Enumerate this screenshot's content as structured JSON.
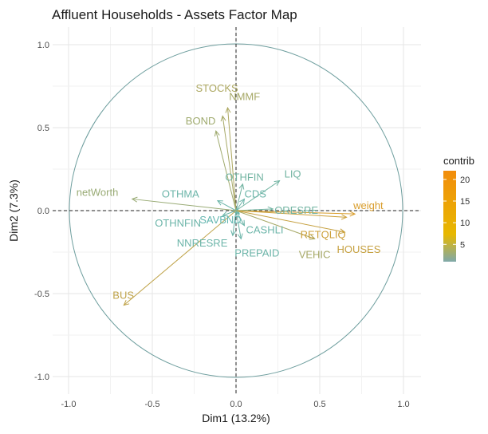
{
  "chart_data": {
    "type": "scatter",
    "subtype": "pca-correlation-circle",
    "title": "Affluent Households - Assets Factor Map",
    "xlabel": "Dim1 (13.2%)",
    "ylabel": "Dim2 (7.3%)",
    "xlim": [
      -1.0,
      1.0
    ],
    "ylim": [
      -1.0,
      1.0
    ],
    "xticks": [
      "-1.0",
      "-0.5",
      "0.0",
      "0.5",
      "1.0"
    ],
    "yticks": [
      "-1.0",
      "-0.5",
      "0.0",
      "0.5",
      "1.0"
    ],
    "grid": true,
    "legend_position": "right",
    "legend": {
      "title": "contrib",
      "ticks": [
        "5",
        "10",
        "15",
        "20"
      ],
      "tick_values": [
        5,
        10,
        15,
        20
      ],
      "range": [
        1,
        22
      ],
      "colors": [
        "#7FA9A9",
        "#E7B800",
        "#F28D0C"
      ]
    },
    "colors": {
      "low": "#5FB8B8",
      "high": "#E69A1C"
    },
    "variables": [
      {
        "name": "STOCKS",
        "x": -0.05,
        "y": 0.62,
        "contrib": 13
      },
      {
        "name": "NMMF",
        "x": -0.08,
        "y": 0.57,
        "contrib": 12
      },
      {
        "name": "BOND",
        "x": -0.12,
        "y": 0.48,
        "contrib": 11
      },
      {
        "name": "OTHFIN",
        "x": 0.04,
        "y": 0.16,
        "contrib": 4
      },
      {
        "name": "LIQ",
        "x": 0.26,
        "y": 0.18,
        "contrib": 4
      },
      {
        "name": "OTHMA",
        "x": -0.11,
        "y": 0.06,
        "contrib": 3
      },
      {
        "name": "CDS",
        "x": 0.05,
        "y": 0.07,
        "contrib": 3
      },
      {
        "name": "netWorth",
        "x": -0.62,
        "y": 0.07,
        "contrib": 10
      },
      {
        "name": "ORESRE",
        "x": 0.22,
        "y": 0.01,
        "contrib": 4
      },
      {
        "name": "weight",
        "x": 0.71,
        "y": -0.02,
        "contrib": 20
      },
      {
        "name": "OTHNFIN",
        "x": -0.08,
        "y": -0.03,
        "contrib": 3
      },
      {
        "name": "SAVBND",
        "x": 0.02,
        "y": -0.02,
        "contrib": 2
      },
      {
        "name": "RETQLIQ",
        "x": 0.66,
        "y": -0.04,
        "contrib": 18
      },
      {
        "name": "CASHLI",
        "x": 0.05,
        "y": -0.09,
        "contrib": 3
      },
      {
        "name": "NNRESRE",
        "x": -0.02,
        "y": -0.15,
        "contrib": 3
      },
      {
        "name": "HOUSES",
        "x": 0.65,
        "y": -0.13,
        "contrib": 17
      },
      {
        "name": "VEHIC",
        "x": 0.47,
        "y": -0.17,
        "contrib": 12
      },
      {
        "name": "PREPAID",
        "x": 0.03,
        "y": -0.17,
        "contrib": 3
      },
      {
        "name": "BUS",
        "x": -0.67,
        "y": -0.57,
        "contrib": 16
      }
    ]
  }
}
